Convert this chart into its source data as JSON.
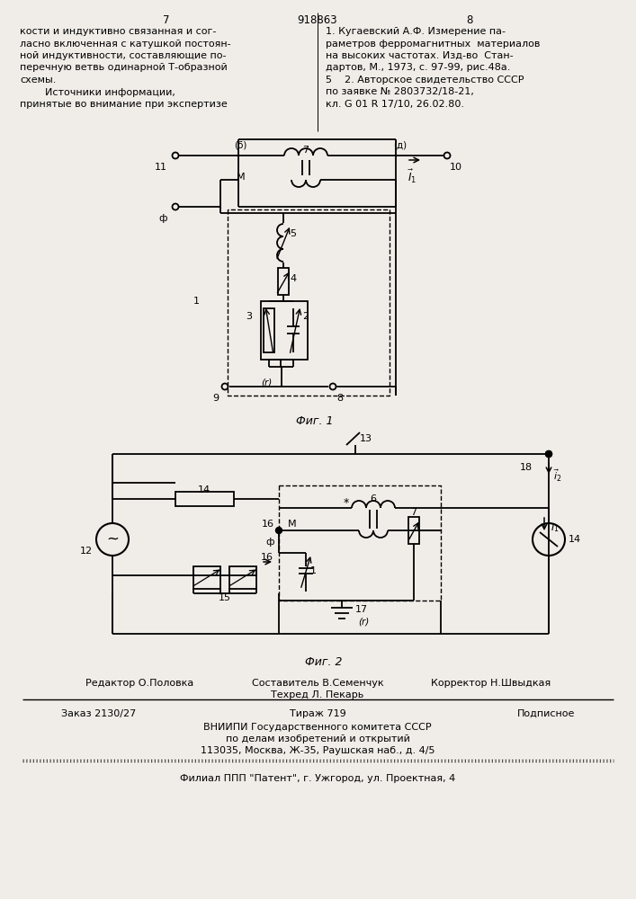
{
  "bg_color": "#f0ede8",
  "page_number_left": "7",
  "page_number_center": "918863",
  "page_number_right": "8",
  "left_text": [
    "кости и индуктивно связанная и сог-",
    "ласно включенная с катушкой постоян-",
    "ной индуктивности, составляющие по-",
    "перечную ветвь одинарной Т-образной",
    "схемы.",
    "        Источники информации,",
    "принятые во внимание при экспертизе"
  ],
  "right_text_line1": "1. Кугаевский А.Ф. Измерение па-",
  "right_text_line2": "раметров ферромагнитных  материалов",
  "right_text_line3": "на высоких частотах. Изд-во  Стан-",
  "right_text_line4": "дартов, М., 1973, с. 97-99, рис.48а.",
  "right_text_line5": "5    2. Авторское свидетельство СССР",
  "right_text_line6": "по заявке № 2803732/18-21,",
  "right_text_line7": "кл. G 01 R 17/10, 26.02.80.",
  "fig1_label": "Фиг. 1",
  "fig2_label": "Фиг. 2",
  "vniip_line1": "ВНИИПИ Государственного комитета СССР",
  "vniip_line2": "по делам изобретений и открытий",
  "vniip_line3": "113035, Москва, Ж-35, Раушская наб., д. 4/5",
  "filial_line": "Филиал ППП \"Патент\", г. Ужгород, ул. Проектная, 4"
}
